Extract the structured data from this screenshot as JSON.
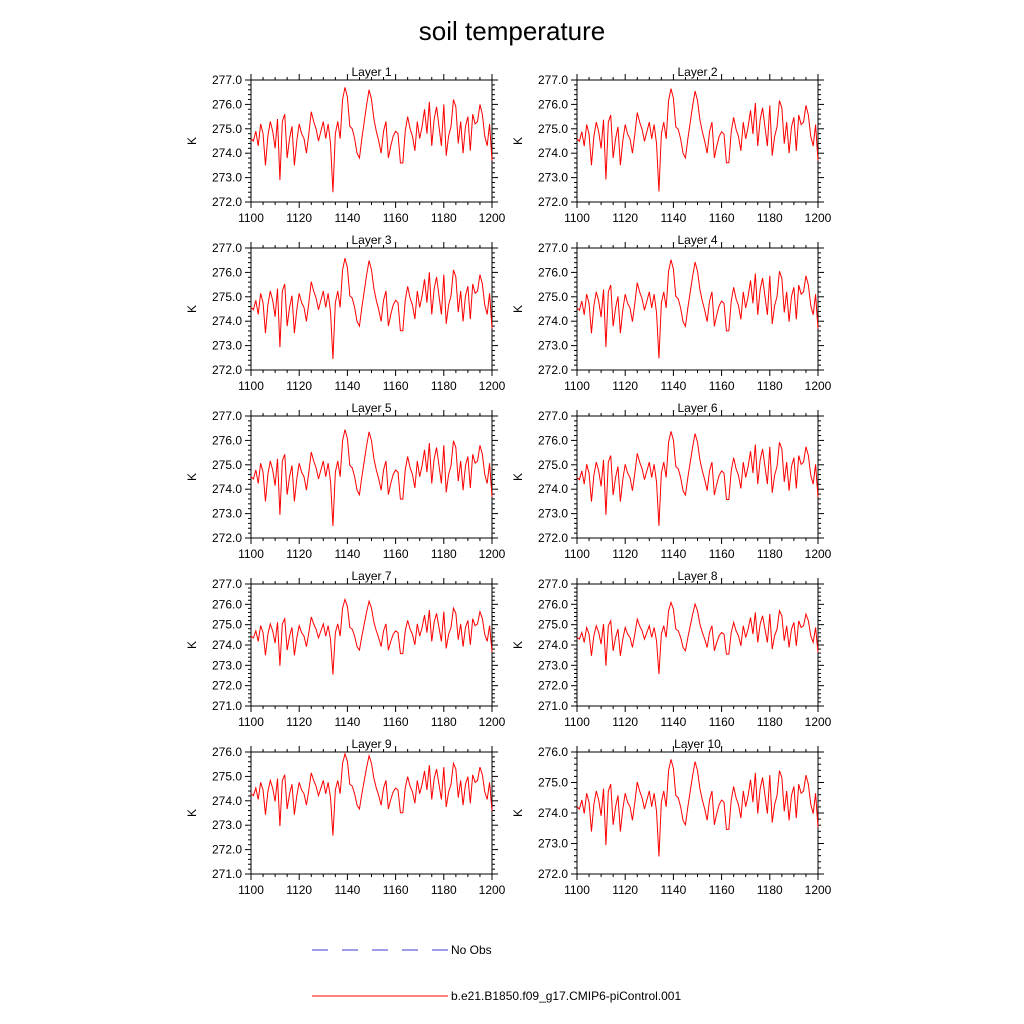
{
  "chart_data": {
    "type": "line",
    "title": "soil temperature",
    "xlim": [
      1100,
      1200
    ],
    "x_ticks": [
      "1100",
      "1120",
      "1140",
      "1160",
      "1180",
      "1200"
    ],
    "ylabel": "K",
    "legend": {
      "position": "bottom",
      "entries": [
        {
          "label": "No Obs",
          "color": "#3b3bcf",
          "style": "dashed"
        },
        {
          "label": "b.e21.B1850.f09_g17.CMIP6-piControl.001",
          "color": "#ff0000",
          "style": "solid"
        }
      ]
    },
    "x_start": 1100,
    "x_step": 1,
    "base_series": [
      274.6,
      274.5,
      274.9,
      274.3,
      275.2,
      274.8,
      273.5,
      274.7,
      275.3,
      274.9,
      274.2,
      275.4,
      272.9,
      275.3,
      275.6,
      273.8,
      274.6,
      275.1,
      273.5,
      274.5,
      275.2,
      274.8,
      274.6,
      274.0,
      274.8,
      275.7,
      275.3,
      275.0,
      274.5,
      274.9,
      275.3,
      274.6,
      275.2,
      274.4,
      272.4,
      274.8,
      275.3,
      274.6,
      276.2,
      276.7,
      276.3,
      275.1,
      275.0,
      274.6,
      274.0,
      273.8,
      274.6,
      275.3,
      276.0,
      276.6,
      276.2,
      275.4,
      274.9,
      274.5,
      274.0,
      274.9,
      275.3,
      273.8,
      274.3,
      274.7,
      274.9,
      274.8,
      273.6,
      273.6,
      274.9,
      275.5,
      275.0,
      274.7,
      274.1,
      275.3,
      274.6,
      275.1,
      275.8,
      274.8,
      276.1,
      274.3,
      275.4,
      275.9,
      275.1,
      274.3,
      276.0,
      273.9,
      274.7,
      275.1,
      276.2,
      275.9,
      274.4,
      275.3,
      274.0,
      275.1,
      275.5,
      274.1,
      275.6,
      275.2,
      275.3,
      276.0,
      275.6,
      274.7,
      274.3,
      275.2,
      273.7
    ],
    "panels": [
      {
        "title": "Layer 1",
        "ylim": [
          272.0,
          277.0
        ],
        "y_ticks": [
          "272.0",
          "273.0",
          "274.0",
          "275.0",
          "276.0",
          "277.0"
        ],
        "offset": 0.0,
        "scale": 1.0
      },
      {
        "title": "Layer 2",
        "ylim": [
          272.0,
          277.0
        ],
        "y_ticks": [
          "272.0",
          "273.0",
          "274.0",
          "275.0",
          "276.0",
          "277.0"
        ],
        "offset": -0.02,
        "scale": 0.98
      },
      {
        "title": "Layer 3",
        "ylim": [
          272.0,
          277.0
        ],
        "y_ticks": [
          "272.0",
          "273.0",
          "274.0",
          "275.0",
          "276.0",
          "277.0"
        ],
        "offset": -0.05,
        "scale": 0.96
      },
      {
        "title": "Layer 4",
        "ylim": [
          272.0,
          277.0
        ],
        "y_ticks": [
          "272.0",
          "273.0",
          "274.0",
          "275.0",
          "276.0",
          "277.0"
        ],
        "offset": -0.08,
        "scale": 0.94
      },
      {
        "title": "Layer 5",
        "ylim": [
          272.0,
          277.0
        ],
        "y_ticks": [
          "272.0",
          "273.0",
          "274.0",
          "275.0",
          "276.0",
          "277.0"
        ],
        "offset": -0.12,
        "scale": 0.92
      },
      {
        "title": "Layer 6",
        "ylim": [
          272.0,
          277.0
        ],
        "y_ticks": [
          "272.0",
          "273.0",
          "274.0",
          "275.0",
          "276.0",
          "277.0"
        ],
        "offset": -0.16,
        "scale": 0.9
      },
      {
        "title": "Layer 7",
        "ylim": [
          271.0,
          277.0
        ],
        "y_ticks": [
          "271.0",
          "272.0",
          "273.0",
          "274.0",
          "275.0",
          "276.0",
          "277.0"
        ],
        "offset": -0.22,
        "scale": 0.86
      },
      {
        "title": "Layer 8",
        "ylim": [
          271.0,
          277.0
        ],
        "y_ticks": [
          "271.0",
          "272.0",
          "273.0",
          "274.0",
          "275.0",
          "276.0",
          "277.0"
        ],
        "offset": -0.3,
        "scale": 0.82
      },
      {
        "title": "Layer 9",
        "ylim": [
          271.0,
          276.0
        ],
        "y_ticks": [
          "271.0",
          "272.0",
          "273.0",
          "274.0",
          "275.0",
          "276.0"
        ],
        "offset": -0.4,
        "scale": 0.78
      },
      {
        "title": "Layer 10",
        "ylim": [
          272.0,
          276.0
        ],
        "y_ticks": [
          "272.0",
          "273.0",
          "274.0",
          "275.0",
          "276.0"
        ],
        "offset": -0.5,
        "scale": 0.74
      }
    ]
  }
}
